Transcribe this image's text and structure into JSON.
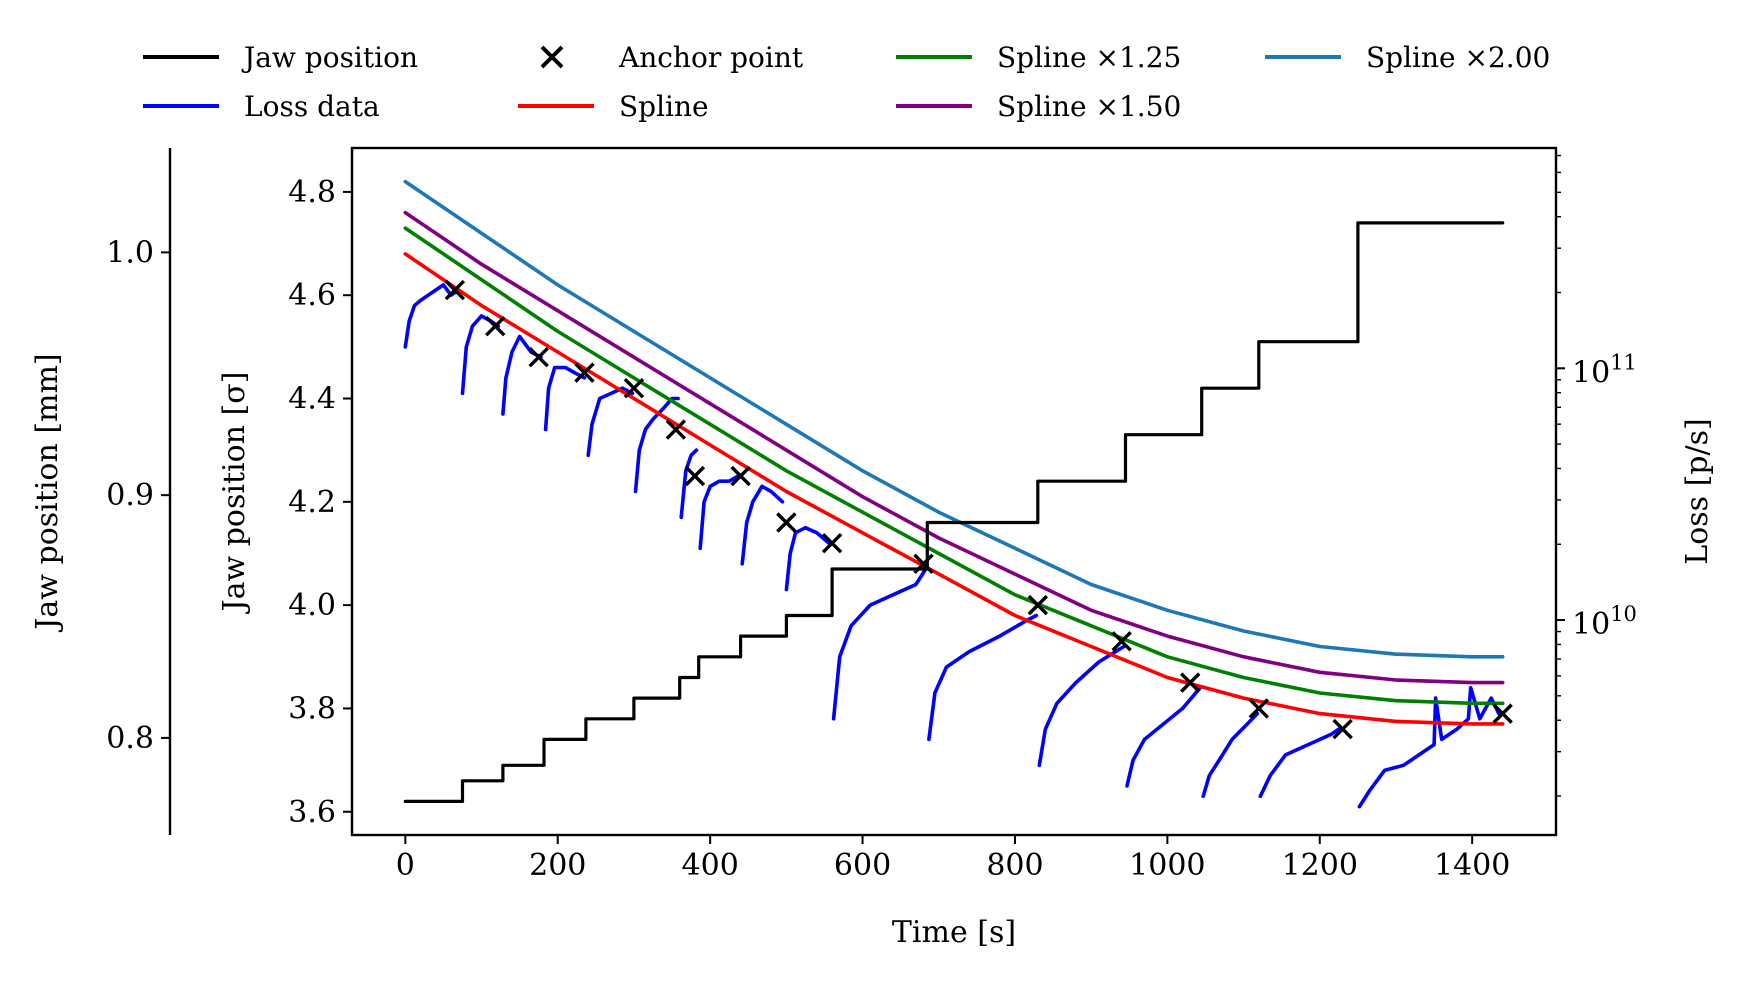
{
  "chart_data": {
    "type": "line",
    "legend_placement": "top (outside plot), 4 columns",
    "legend": [
      {
        "label": "Jaw position",
        "color": "#000000",
        "kind": "line"
      },
      {
        "label": "Loss data",
        "color": "#0000ff",
        "kind": "line"
      },
      {
        "label": "Anchor point",
        "color": "#000000",
        "kind": "x-marker"
      },
      {
        "label": "Spline",
        "color": "#ff0000",
        "kind": "line"
      },
      {
        "label": "Spline ×1.25",
        "color": "#008000",
        "kind": "line"
      },
      {
        "label": "Spline ×1.50",
        "color": "#800080",
        "kind": "line"
      },
      {
        "label": "Spline ×2.00",
        "color": "#1f77b4",
        "kind": "line"
      }
    ],
    "x_axis": {
      "label": "Time [s]",
      "lim": [
        -70,
        1510
      ],
      "ticks": [
        0,
        200,
        400,
        600,
        800,
        1000,
        1200,
        1400
      ]
    },
    "y_axis_sigma": {
      "label": "Jaw position [σ]",
      "lim": [
        3.555,
        4.885
      ],
      "ticks": [
        3.6,
        3.8,
        4.0,
        4.2,
        4.4,
        4.6,
        4.8
      ],
      "tick_labels": [
        "3.6",
        "3.8",
        "4.0",
        "4.2",
        "4.4",
        "4.6",
        "4.8"
      ]
    },
    "y_axis_mm": {
      "label": "Jaw position [mm]",
      "lim": [
        0.76,
        1.043
      ],
      "ticks": [
        0.8,
        0.9,
        1.0
      ],
      "tick_labels": [
        "0.8",
        "0.9",
        "1.0"
      ]
    },
    "y_axis_loss": {
      "label": "Loss [p/s]",
      "scale": "log",
      "lim": [
        1400000000.0,
        750000000000.0
      ],
      "ticks": [
        10000000000.0,
        100000000000.0
      ],
      "tick_labels": [
        "10",
        "10"
      ],
      "tick_exponents": [
        "10",
        "11"
      ]
    },
    "grid": false,
    "jaw_position_sigma": {
      "t": [
        0,
        75,
        75,
        128,
        128,
        182,
        182,
        237,
        237,
        300,
        300,
        360,
        360,
        385,
        385,
        440,
        440,
        500,
        500,
        560,
        560,
        685,
        685,
        830,
        830,
        945,
        945,
        1045,
        1045,
        1120,
        1120,
        1250,
        1250,
        1440
      ],
      "sigma": [
        3.62,
        3.62,
        3.66,
        3.66,
        3.69,
        3.69,
        3.74,
        3.74,
        3.78,
        3.78,
        3.82,
        3.82,
        3.86,
        3.86,
        3.9,
        3.9,
        3.94,
        3.94,
        3.98,
        3.98,
        4.07,
        4.07,
        4.16,
        4.16,
        4.24,
        4.24,
        4.33,
        4.33,
        4.42,
        4.42,
        4.51,
        4.51,
        4.74,
        4.74
      ]
    },
    "anchor_points": {
      "t": [
        65,
        118,
        175,
        235,
        300,
        355,
        380,
        440,
        500,
        560,
        680,
        830,
        940,
        1030,
        1120,
        1230,
        1440
      ],
      "sigma": [
        4.61,
        4.54,
        4.48,
        4.45,
        4.42,
        4.34,
        4.25,
        4.25,
        4.16,
        4.12,
        4.08,
        4.0,
        3.93,
        3.85,
        3.8,
        3.76,
        3.79
      ]
    },
    "spline": {
      "t": [
        0,
        100,
        200,
        300,
        400,
        500,
        600,
        700,
        800,
        900,
        1000,
        1100,
        1200,
        1300,
        1400,
        1440
      ],
      "sigma": [
        4.68,
        4.58,
        4.49,
        4.4,
        4.31,
        4.22,
        4.14,
        4.06,
        3.98,
        3.92,
        3.86,
        3.82,
        3.79,
        3.775,
        3.77,
        3.77
      ]
    },
    "spline_x1_25": {
      "t": [
        0,
        100,
        200,
        300,
        400,
        500,
        600,
        700,
        800,
        900,
        1000,
        1100,
        1200,
        1300,
        1400,
        1440
      ],
      "sigma": [
        4.73,
        4.63,
        4.53,
        4.44,
        4.35,
        4.26,
        4.18,
        4.1,
        4.02,
        3.96,
        3.9,
        3.86,
        3.83,
        3.815,
        3.81,
        3.81
      ]
    },
    "spline_x1_50": {
      "t": [
        0,
        100,
        200,
        300,
        400,
        500,
        600,
        700,
        800,
        900,
        1000,
        1100,
        1200,
        1300,
        1400,
        1440
      ],
      "sigma": [
        4.76,
        4.66,
        4.57,
        4.48,
        4.39,
        4.3,
        4.21,
        4.13,
        4.06,
        3.99,
        3.94,
        3.9,
        3.87,
        3.855,
        3.85,
        3.85
      ]
    },
    "spline_x2_00": {
      "t": [
        0,
        100,
        200,
        300,
        400,
        500,
        600,
        700,
        800,
        900,
        1000,
        1100,
        1200,
        1300,
        1400,
        1440
      ],
      "sigma": [
        4.82,
        4.72,
        4.62,
        4.53,
        4.44,
        4.35,
        4.26,
        4.18,
        4.11,
        4.04,
        3.99,
        3.95,
        3.92,
        3.905,
        3.9,
        3.9
      ]
    },
    "loss_data_sigma_scale": {
      "segments": [
        {
          "t": [
            0,
            5,
            12,
            20,
            30,
            40,
            50,
            60,
            70
          ],
          "sigma": [
            4.5,
            4.55,
            4.58,
            4.59,
            4.6,
            4.61,
            4.62,
            4.6,
            4.61
          ]
        },
        {
          "t": [
            75,
            80,
            88,
            100,
            112,
            122
          ],
          "sigma": [
            4.41,
            4.5,
            4.54,
            4.56,
            4.55,
            4.54
          ]
        },
        {
          "t": [
            128,
            132,
            140,
            150,
            165,
            178
          ],
          "sigma": [
            4.37,
            4.44,
            4.49,
            4.52,
            4.49,
            4.48
          ]
        },
        {
          "t": [
            184,
            188,
            196,
            210,
            222,
            235
          ],
          "sigma": [
            4.34,
            4.42,
            4.46,
            4.46,
            4.45,
            4.44
          ]
        },
        {
          "t": [
            240,
            245,
            255,
            270,
            285,
            298
          ],
          "sigma": [
            4.29,
            4.35,
            4.4,
            4.41,
            4.42,
            4.41
          ]
        },
        {
          "t": [
            302,
            307,
            315,
            325,
            338,
            350,
            358
          ],
          "sigma": [
            4.22,
            4.3,
            4.34,
            4.36,
            4.38,
            4.4,
            4.4
          ]
        },
        {
          "t": [
            362,
            368,
            375,
            382
          ],
          "sigma": [
            4.17,
            4.26,
            4.29,
            4.3
          ]
        },
        {
          "t": [
            387,
            392,
            400,
            412,
            425,
            437
          ],
          "sigma": [
            4.11,
            4.2,
            4.23,
            4.24,
            4.24,
            4.25
          ]
        },
        {
          "t": [
            442,
            448,
            456,
            468,
            480,
            495
          ],
          "sigma": [
            4.08,
            4.16,
            4.2,
            4.23,
            4.22,
            4.2
          ]
        },
        {
          "t": [
            500,
            505,
            512,
            525,
            540,
            556
          ],
          "sigma": [
            4.03,
            4.1,
            4.14,
            4.15,
            4.14,
            4.12
          ]
        },
        {
          "t": [
            562,
            570,
            585,
            610,
            640,
            670,
            683
          ],
          "sigma": [
            3.78,
            3.9,
            3.96,
            4.0,
            4.02,
            4.04,
            4.07
          ]
        },
        {
          "t": [
            687,
            695,
            710,
            740,
            780,
            815,
            828
          ],
          "sigma": [
            3.74,
            3.83,
            3.88,
            3.91,
            3.94,
            3.97,
            3.98
          ]
        },
        {
          "t": [
            832,
            840,
            855,
            880,
            910,
            943
          ],
          "sigma": [
            3.69,
            3.76,
            3.81,
            3.85,
            3.89,
            3.92
          ]
        },
        {
          "t": [
            947,
            955,
            970,
            995,
            1020,
            1043
          ],
          "sigma": [
            3.65,
            3.7,
            3.74,
            3.77,
            3.8,
            3.84
          ]
        },
        {
          "t": [
            1047,
            1055,
            1068,
            1085,
            1105,
            1118
          ],
          "sigma": [
            3.63,
            3.67,
            3.7,
            3.74,
            3.77,
            3.79
          ]
        },
        {
          "t": [
            1122,
            1135,
            1155,
            1185,
            1215,
            1225
          ],
          "sigma": [
            3.63,
            3.67,
            3.71,
            3.73,
            3.75,
            3.76
          ]
        },
        {
          "t": [
            1252,
            1265,
            1285,
            1310,
            1340,
            1350,
            1352,
            1360,
            1380,
            1395,
            1398,
            1410,
            1425,
            1435
          ],
          "sigma": [
            3.61,
            3.64,
            3.68,
            3.69,
            3.72,
            3.73,
            3.82,
            3.74,
            3.76,
            3.78,
            3.84,
            3.78,
            3.82,
            3.79
          ]
        }
      ]
    }
  }
}
